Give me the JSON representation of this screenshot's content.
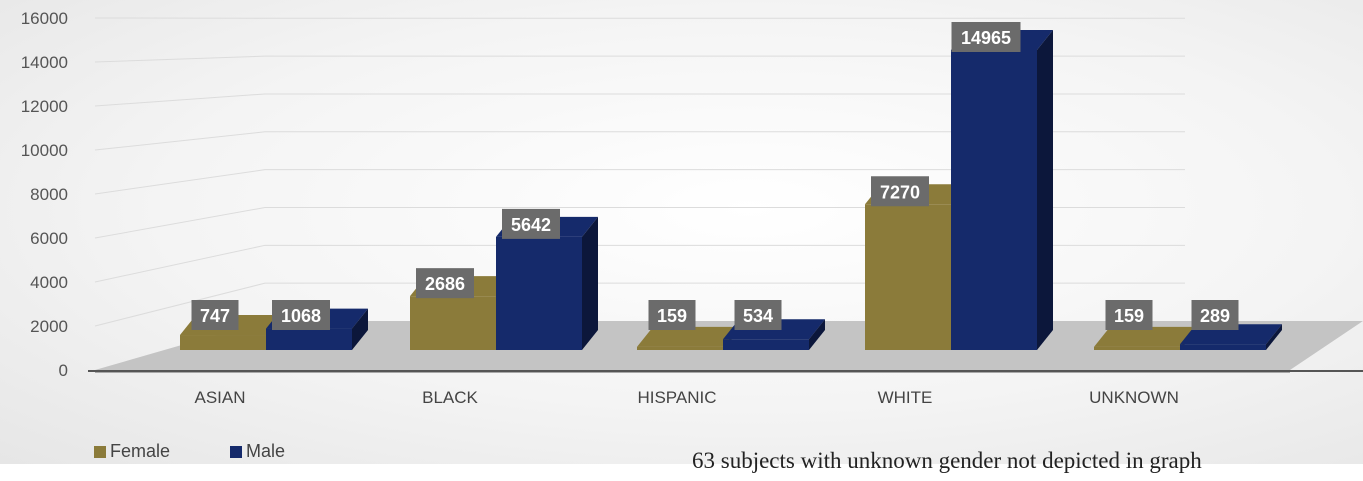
{
  "chart_data": {
    "type": "bar",
    "categories": [
      "ASIAN",
      "BLACK",
      "HISPANIC",
      "WHITE",
      "UNKNOWN"
    ],
    "series": [
      {
        "name": "Female",
        "values": [
          747,
          2686,
          159,
          7270,
          159
        ],
        "color": "#8B7B3A"
      },
      {
        "name": "Male",
        "values": [
          1068,
          5642,
          534,
          14965,
          289
        ],
        "color": "#152A6B"
      }
    ],
    "y_ticks": [
      "0",
      "2000",
      "4000",
      "6000",
      "8000",
      "10000",
      "12000",
      "14000",
      "16000"
    ],
    "ylim": [
      0,
      16000
    ],
    "title": "",
    "xlabel": "",
    "ylabel": "",
    "grid": true,
    "legend_position": "bottom-left",
    "style": "3d-clustered-column"
  },
  "footnote": "63 subjects with unknown gender not depicted in graph"
}
